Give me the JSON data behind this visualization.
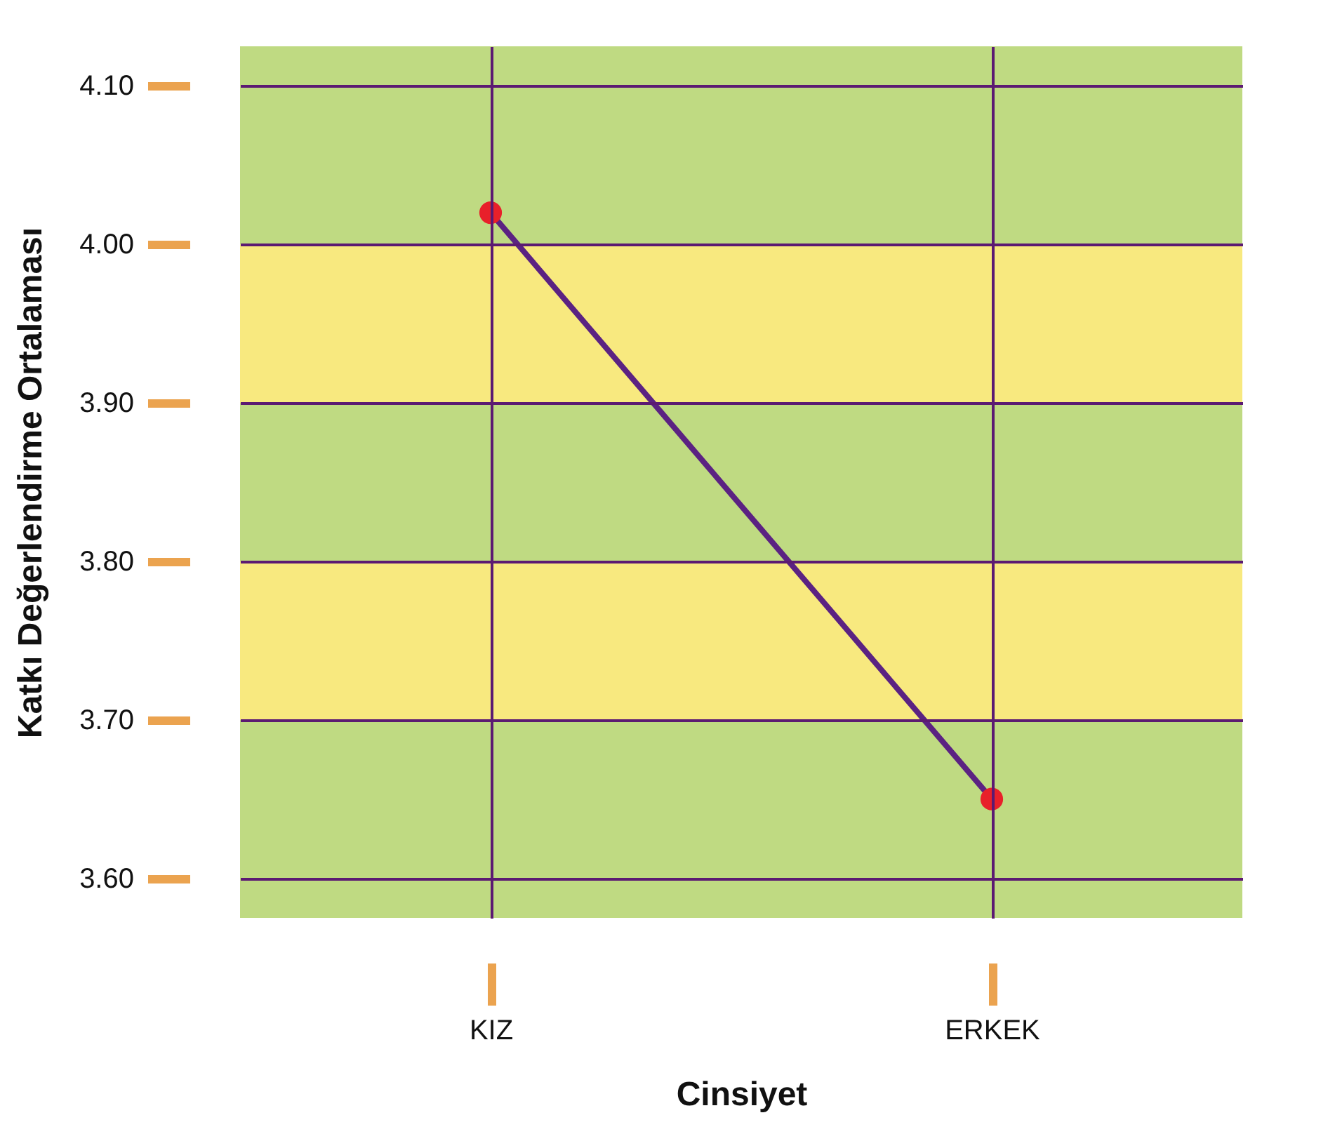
{
  "chart_data": {
    "type": "line",
    "xlabel": "Cinsiyet",
    "ylabel": "Katkı Değerlendirme Ortalaması",
    "categories": [
      "KIZ",
      "ERKEK"
    ],
    "series": [
      {
        "color": "#5b2282",
        "values": [
          4.02,
          3.65
        ]
      }
    ],
    "marker": "circle",
    "line_style": "solid",
    "grid": true,
    "legend": false,
    "ylim": [
      3.575,
      4.125
    ],
    "yticks": [
      {
        "value": 3.6,
        "label": "3.60"
      },
      {
        "value": 3.7,
        "label": "3.70"
      },
      {
        "value": 3.8,
        "label": "3.80"
      },
      {
        "value": 3.9,
        "label": "3.90"
      },
      {
        "value": 4.0,
        "label": "4.00"
      },
      {
        "value": 4.1,
        "label": "4.10"
      }
    ],
    "bands": [
      {
        "axis": "y",
        "from": 3.575,
        "to": 3.7,
        "color": "#bfda82"
      },
      {
        "axis": "y",
        "from": 3.7,
        "to": 3.8,
        "color": "#f8e97f"
      },
      {
        "axis": "y",
        "from": 3.8,
        "to": 3.9,
        "color": "#bfda82"
      },
      {
        "axis": "y",
        "from": 3.9,
        "to": 4.0,
        "color": "#f8e97f"
      },
      {
        "axis": "y",
        "from": 4.0,
        "to": 4.125,
        "color": "#bfda82"
      }
    ]
  }
}
